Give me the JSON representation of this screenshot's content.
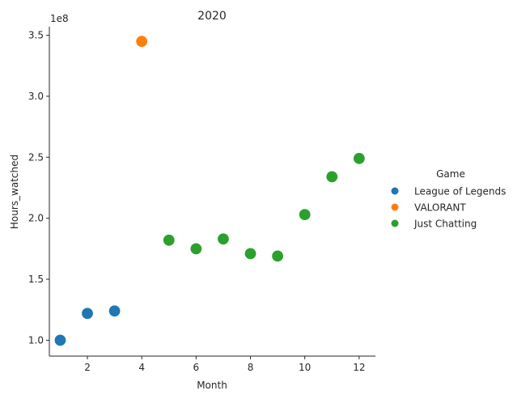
{
  "chart_data": {
    "type": "scatter",
    "title": "2020",
    "xlabel": "Month",
    "ylabel": "Hours_watched",
    "y_offset_label": "1e8",
    "xlim": [
      0.6,
      12.6
    ],
    "ylim": [
      87000000,
      357000000
    ],
    "xticks": [
      2,
      4,
      6,
      8,
      10,
      12
    ],
    "xtick_labels": [
      "2",
      "4",
      "6",
      "8",
      "10",
      "12"
    ],
    "yticks": [
      100000000,
      150000000,
      200000000,
      250000000,
      300000000,
      350000000
    ],
    "ytick_labels": [
      "1.0",
      "1.5",
      "2.0",
      "2.5",
      "3.0",
      "3.5"
    ],
    "grid": false,
    "legend": {
      "title": "Game",
      "placement": "right"
    },
    "series": [
      {
        "name": "League of Legends",
        "color": "#1f77b4",
        "points": [
          {
            "x": 1,
            "y": 100000000
          },
          {
            "x": 2,
            "y": 122000000
          },
          {
            "x": 3,
            "y": 124000000
          }
        ]
      },
      {
        "name": "VALORANT",
        "color": "#ff7f0e",
        "points": [
          {
            "x": 4,
            "y": 345000000
          }
        ]
      },
      {
        "name": "Just Chatting",
        "color": "#2ca02c",
        "points": [
          {
            "x": 5,
            "y": 182000000
          },
          {
            "x": 6,
            "y": 175000000
          },
          {
            "x": 7,
            "y": 183000000
          },
          {
            "x": 8,
            "y": 171000000
          },
          {
            "x": 9,
            "y": 169000000
          },
          {
            "x": 10,
            "y": 203000000
          },
          {
            "x": 11,
            "y": 234000000
          },
          {
            "x": 12,
            "y": 249000000
          }
        ]
      }
    ]
  }
}
